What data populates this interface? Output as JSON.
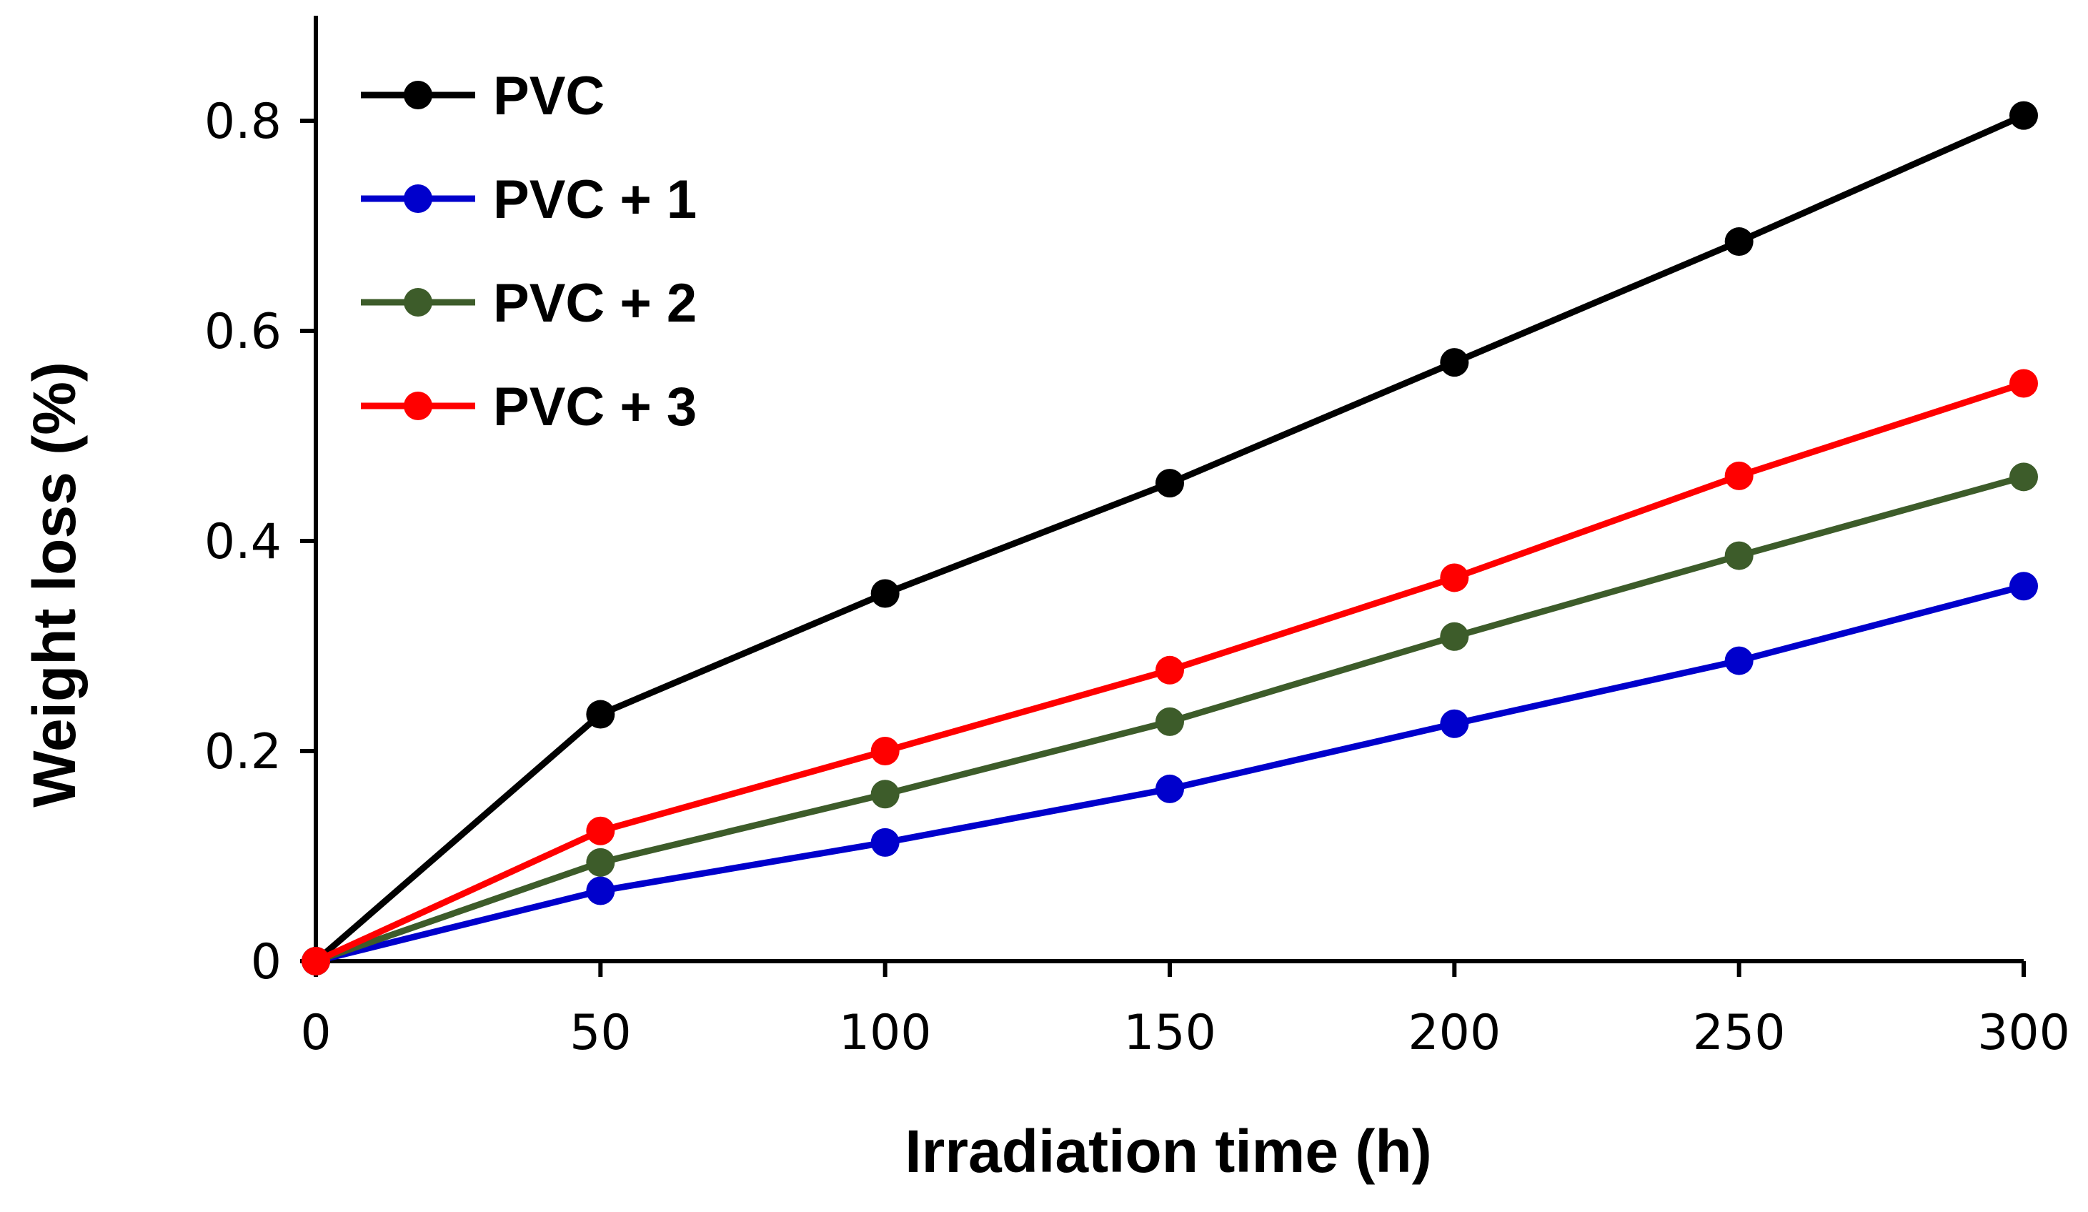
{
  "chart_data": {
    "type": "line",
    "title": "",
    "xlabel": "Irradiation time (h)",
    "ylabel": "Weight loss (%)",
    "x": [
      0,
      50,
      100,
      150,
      200,
      250,
      300
    ],
    "xlim": [
      0,
      300
    ],
    "ylim": [
      0,
      0.9
    ],
    "xticks": [
      0,
      50,
      100,
      150,
      200,
      250,
      300
    ],
    "xtick_labels": [
      "0",
      "50",
      "100",
      "150",
      "200",
      "250",
      "300"
    ],
    "yticks": [
      0,
      0.2,
      0.4,
      0.6,
      0.8
    ],
    "ytick_labels": [
      "0",
      "0.2",
      "0.4",
      "0.6",
      "0.8"
    ],
    "grid": false,
    "legend_position": "top-left",
    "series": [
      {
        "name": "PVC",
        "color": "#000000",
        "values": [
          0,
          0.235,
          0.35,
          0.455,
          0.57,
          0.685,
          0.805
        ]
      },
      {
        "name": "PVC + 1",
        "color": "#0000cc",
        "values": [
          0,
          0.067,
          0.113,
          0.164,
          0.226,
          0.286,
          0.357
        ]
      },
      {
        "name": "PVC + 2",
        "color": "#3d5c2a",
        "values": [
          0,
          0.094,
          0.159,
          0.228,
          0.309,
          0.386,
          0.461
        ]
      },
      {
        "name": "PVC + 3",
        "color": "#ff0000",
        "values": [
          0,
          0.124,
          0.2,
          0.277,
          0.365,
          0.462,
          0.55
        ]
      }
    ]
  }
}
